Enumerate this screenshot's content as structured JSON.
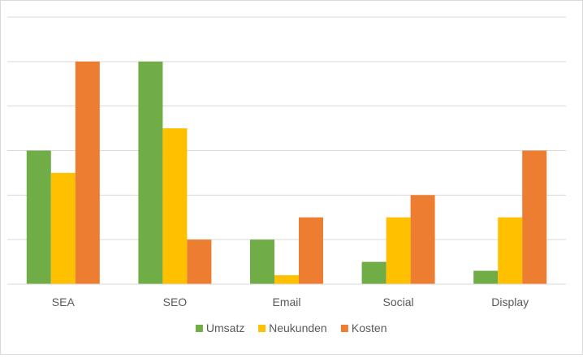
{
  "chart_data": {
    "type": "bar",
    "categories": [
      "SEA",
      "SEO",
      "Email",
      "Social",
      "Display"
    ],
    "series": [
      {
        "name": "Umsatz",
        "values": [
          3,
          5,
          1,
          0.5,
          0.3
        ],
        "color": "#70ad47"
      },
      {
        "name": "Neukunden",
        "values": [
          2.5,
          3.5,
          0.2,
          1.5,
          1.5
        ],
        "color": "#ffc000"
      },
      {
        "name": "Kosten",
        "values": [
          5,
          1,
          1.5,
          2,
          3
        ],
        "color": "#ed7d31"
      }
    ],
    "ylim": [
      0,
      6
    ],
    "ytick_step": 1,
    "ytick_labels_shown": false,
    "grid": true,
    "legend": "bottom",
    "title": "",
    "xlabel": "",
    "ylabel": ""
  }
}
